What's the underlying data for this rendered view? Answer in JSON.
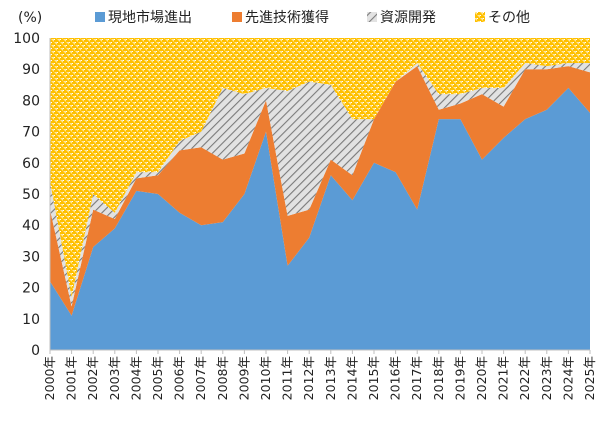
{
  "chart_data": {
    "type": "area",
    "stacked": true,
    "y_unit_label": "(%)",
    "ylim": [
      0,
      100
    ],
    "yticks": [
      0,
      10,
      20,
      30,
      40,
      50,
      60,
      70,
      80,
      90,
      100
    ],
    "categories": [
      "2000年",
      "2001年",
      "2002年",
      "2003年",
      "2004年",
      "2005年",
      "2006年",
      "2007年",
      "2008年",
      "2009年",
      "2010年",
      "2011年",
      "2012年",
      "2013年",
      "2014年",
      "2015年",
      "2016年",
      "2017年",
      "2018年",
      "2019年",
      "2020年",
      "2021年",
      "2022年",
      "2023年",
      "2024年",
      "2025年"
    ],
    "legend_position": "top",
    "series": [
      {
        "name": "現地市場進出",
        "color": "#5b9bd5",
        "pattern": "solid",
        "values": [
          22,
          11,
          33,
          39,
          51,
          50,
          44,
          40,
          41,
          50,
          70,
          27,
          36,
          56,
          48,
          60,
          57,
          45,
          74,
          74,
          61,
          68,
          74,
          77,
          84,
          76
        ]
      },
      {
        "name": "先進技術獲得",
        "color": "#ed7d31",
        "pattern": "solid",
        "values": [
          23,
          3,
          12,
          3,
          4,
          6,
          20,
          25,
          20,
          13,
          10,
          16,
          9,
          5,
          8,
          14,
          29,
          46,
          3,
          5,
          21,
          10,
          16,
          13,
          7,
          13
        ]
      },
      {
        "name": "資源開発",
        "color": "#a5a5a5",
        "pattern": "hatch",
        "values": [
          9,
          3,
          5,
          2,
          2,
          1,
          3,
          5,
          23,
          19,
          4,
          40,
          41,
          24,
          18,
          0,
          0,
          1,
          5,
          3,
          2,
          6,
          2,
          1,
          1,
          3
        ]
      },
      {
        "name": "その他",
        "color": "#ffc000",
        "pattern": "dots",
        "values": [
          46,
          83,
          50,
          56,
          43,
          43,
          33,
          30,
          16,
          18,
          16,
          17,
          14,
          15,
          26,
          26,
          14,
          8,
          18,
          18,
          16,
          16,
          8,
          9,
          8,
          8
        ]
      }
    ]
  }
}
